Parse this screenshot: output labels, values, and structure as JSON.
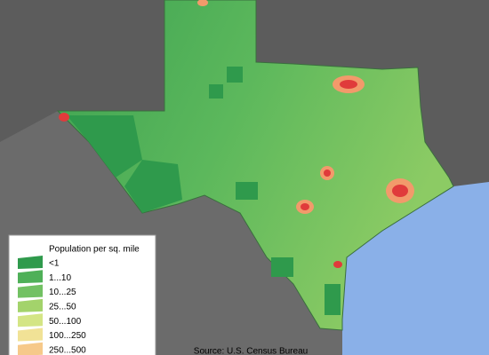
{
  "legend": {
    "title": "Population per sq. mile",
    "items": [
      {
        "label": "<1",
        "color": "#2f9a4c"
      },
      {
        "label": "1...10",
        "color": "#4fb058"
      },
      {
        "label": "10...25",
        "color": "#72c163"
      },
      {
        "label": "25...50",
        "color": "#a3d36b"
      },
      {
        "label": "50...100",
        "color": "#d4e585"
      },
      {
        "label": "100...250",
        "color": "#f1e296"
      },
      {
        "label": "250...500",
        "color": "#f6c98a"
      }
    ]
  },
  "source": "Source: U.S. Census Bureau"
}
